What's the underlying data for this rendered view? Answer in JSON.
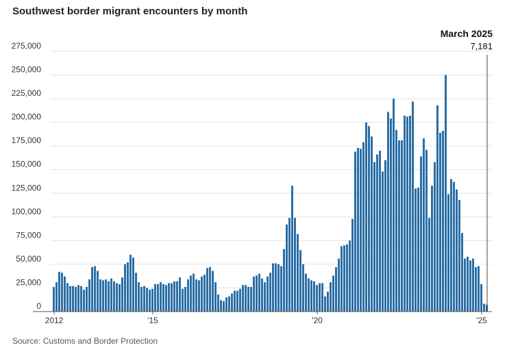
{
  "title": "Southwest border migrant encounters by month",
  "source": "Source: Customs and Border Protection",
  "chart_data": {
    "type": "bar",
    "x_start": "2012-01",
    "x_end": "2025-03",
    "ylim": [
      0,
      275000
    ],
    "yticks": [
      {
        "value": 0,
        "label": "0"
      },
      {
        "value": 25000,
        "label": "25,000"
      },
      {
        "value": 50000,
        "label": "50,000"
      },
      {
        "value": 75000,
        "label": "75,000"
      },
      {
        "value": 100000,
        "label": "100,000"
      },
      {
        "value": 125000,
        "label": "125,000"
      },
      {
        "value": 150000,
        "label": "150,000"
      },
      {
        "value": 175000,
        "label": "175,000"
      },
      {
        "value": 200000,
        "label": "200,000"
      },
      {
        "value": 225000,
        "label": "225,000"
      },
      {
        "value": 250000,
        "label": "250,000"
      },
      {
        "value": 275000,
        "label": "275,000"
      }
    ],
    "xticks": [
      {
        "month": "2012-01",
        "label": "2012"
      },
      {
        "month": "2015-01",
        "label": "'15"
      },
      {
        "month": "2020-01",
        "label": "'20"
      },
      {
        "month": "2025-01",
        "label": "'25"
      }
    ],
    "grid": true,
    "bar_color": "#2a6ea6",
    "annotation": {
      "month": "2025-03",
      "label": "March 2025",
      "value_label": "7,181"
    },
    "values": [
      26000,
      31000,
      42000,
      41000,
      37000,
      30000,
      27000,
      27000,
      26000,
      28000,
      27000,
      23000,
      26000,
      34000,
      47000,
      48000,
      43000,
      34000,
      33000,
      34000,
      32000,
      35000,
      32000,
      30000,
      29000,
      36000,
      50000,
      52000,
      60000,
      57000,
      41000,
      31000,
      26000,
      27000,
      25000,
      23000,
      24000,
      29000,
      29000,
      31000,
      29000,
      28000,
      30000,
      30000,
      32000,
      32000,
      36000,
      24000,
      26000,
      34000,
      38000,
      40000,
      34000,
      33000,
      37000,
      39000,
      46000,
      47000,
      43000,
      31000,
      18000,
      12000,
      11000,
      15000,
      16000,
      19000,
      22000,
      22000,
      24000,
      28000,
      28000,
      26000,
      26000,
      37000,
      38000,
      40000,
      35000,
      31000,
      37000,
      41000,
      51000,
      51000,
      50000,
      48000,
      66000,
      92000,
      99000,
      133000,
      99000,
      82000,
      65000,
      50000,
      40000,
      35000,
      33000,
      32000,
      28000,
      30000,
      30000,
      16000,
      21000,
      31000,
      38000,
      47000,
      56000,
      69000,
      70000,
      71000,
      75000,
      98000,
      169000,
      173000,
      172000,
      179000,
      200000,
      196000,
      185000,
      158000,
      166000,
      170000,
      148000,
      160000,
      211000,
      204000,
      225000,
      192000,
      181000,
      181000,
      207000,
      206000,
      207000,
      222000,
      130000,
      131000,
      164000,
      183000,
      171000,
      99000,
      133000,
      158000,
      218000,
      189000,
      191000,
      250000,
      124000,
      140000,
      137000,
      129000,
      118000,
      83000,
      56000,
      58000,
      54000,
      56000,
      47000,
      48000,
      29000,
      8300,
      7181
    ]
  }
}
